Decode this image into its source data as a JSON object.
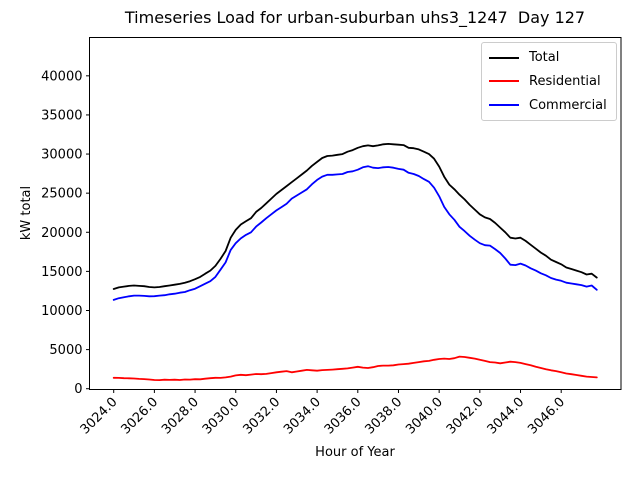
{
  "title": "Timeseries Load for urban-suburban uhs3_1247  Day 127",
  "chart_data": {
    "type": "line",
    "title": "Timeseries Load for urban-suburban uhs3_1247  Day 127",
    "xlabel": "Hour of Year",
    "ylabel": "kW total",
    "grid": false,
    "legend_position": "upper right",
    "xlim": [
      3022.81,
      3048.94
    ],
    "ylim": [
      -100,
      44900
    ],
    "x_ticks": [
      3024,
      3026,
      3028,
      3030,
      3032,
      3034,
      3036,
      3038,
      3040,
      3042,
      3044,
      3046
    ],
    "x_tick_labels": [
      "3024.0",
      "3026.0",
      "3028.0",
      "3030.0",
      "3032.0",
      "3034.0",
      "3036.0",
      "3038.0",
      "3040.0",
      "3042.0",
      "3044.0",
      "3046.0"
    ],
    "y_ticks": [
      0,
      5000,
      10000,
      15000,
      20000,
      25000,
      30000,
      35000,
      40000
    ],
    "y_tick_labels": [
      "0",
      "5000",
      "10000",
      "15000",
      "20000",
      "25000",
      "30000",
      "35000",
      "40000"
    ],
    "x": [
      3024.0,
      3024.25,
      3024.5,
      3024.75,
      3025.0,
      3025.25,
      3025.5,
      3025.75,
      3026.0,
      3026.25,
      3026.5,
      3026.75,
      3027.0,
      3027.25,
      3027.5,
      3027.75,
      3028.0,
      3028.25,
      3028.5,
      3028.75,
      3029.0,
      3029.25,
      3029.5,
      3029.75,
      3030.0,
      3030.25,
      3030.5,
      3030.75,
      3031.0,
      3031.25,
      3031.5,
      3031.75,
      3032.0,
      3032.25,
      3032.5,
      3032.75,
      3033.0,
      3033.25,
      3033.5,
      3033.75,
      3034.0,
      3034.25,
      3034.5,
      3034.75,
      3035.0,
      3035.25,
      3035.5,
      3035.75,
      3036.0,
      3036.25,
      3036.5,
      3036.75,
      3037.0,
      3037.25,
      3037.5,
      3037.75,
      3038.0,
      3038.25,
      3038.5,
      3038.75,
      3039.0,
      3039.25,
      3039.5,
      3039.75,
      3040.0,
      3040.25,
      3040.5,
      3040.75,
      3041.0,
      3041.25,
      3041.5,
      3041.75,
      3042.0,
      3042.25,
      3042.5,
      3042.75,
      3043.0,
      3043.25,
      3043.5,
      3043.75,
      3044.0,
      3044.25,
      3044.5,
      3044.75,
      3045.0,
      3045.25,
      3045.5,
      3045.75,
      3046.0,
      3046.25,
      3046.5,
      3046.75,
      3047.0,
      3047.25,
      3047.5,
      3047.75
    ],
    "series": [
      {
        "name": "Total",
        "color": "#000000",
        "values": [
          12750,
          12950,
          13050,
          13150,
          13200,
          13150,
          13100,
          13000,
          12950,
          13000,
          13100,
          13200,
          13300,
          13400,
          13550,
          13750,
          14000,
          14300,
          14700,
          15100,
          15700,
          16600,
          17600,
          19300,
          20300,
          21000,
          21400,
          21800,
          22600,
          23100,
          23700,
          24300,
          24900,
          25400,
          25900,
          26400,
          26900,
          27400,
          27900,
          28500,
          29000,
          29500,
          29750,
          29800,
          29900,
          30000,
          30300,
          30500,
          30800,
          31000,
          31100,
          31000,
          31100,
          31250,
          31300,
          31250,
          31200,
          31150,
          30800,
          30750,
          30600,
          30300,
          30000,
          29400,
          28400,
          27100,
          26100,
          25500,
          24800,
          24200,
          23500,
          22900,
          22300,
          21900,
          21700,
          21200,
          20600,
          20000,
          19300,
          19200,
          19300,
          18900,
          18400,
          17900,
          17400,
          17000,
          16500,
          16200,
          15900,
          15500,
          15300,
          15100,
          14900,
          14600,
          14700,
          14200
        ]
      },
      {
        "name": "Residential",
        "color": "#ff0000",
        "values": [
          1400,
          1380,
          1350,
          1330,
          1300,
          1250,
          1230,
          1180,
          1120,
          1100,
          1150,
          1130,
          1150,
          1120,
          1180,
          1160,
          1220,
          1200,
          1280,
          1350,
          1400,
          1380,
          1450,
          1550,
          1700,
          1780,
          1730,
          1800,
          1880,
          1850,
          1900,
          2000,
          2100,
          2180,
          2250,
          2100,
          2200,
          2300,
          2400,
          2350,
          2300,
          2380,
          2400,
          2450,
          2500,
          2550,
          2600,
          2700,
          2800,
          2700,
          2650,
          2750,
          2900,
          2950,
          2950,
          3000,
          3100,
          3150,
          3200,
          3300,
          3400,
          3500,
          3550,
          3700,
          3800,
          3850,
          3800,
          3900,
          4100,
          4050,
          3950,
          3850,
          3700,
          3550,
          3400,
          3350,
          3250,
          3350,
          3450,
          3400,
          3300,
          3150,
          3000,
          2800,
          2650,
          2500,
          2350,
          2250,
          2100,
          1950,
          1850,
          1750,
          1650,
          1550,
          1500,
          1450
        ]
      },
      {
        "name": "Commercial",
        "color": "#0000ff",
        "values": [
          11350,
          11570,
          11700,
          11820,
          11900,
          11900,
          11870,
          11820,
          11830,
          11900,
          11950,
          12070,
          12150,
          12280,
          12370,
          12590,
          12780,
          13100,
          13420,
          13750,
          14300,
          15220,
          16150,
          17750,
          18600,
          19220,
          19670,
          20000,
          20720,
          21250,
          21800,
          22300,
          22800,
          23220,
          23650,
          24300,
          24700,
          25100,
          25500,
          26150,
          26700,
          27120,
          27350,
          27350,
          27400,
          27450,
          27700,
          27800,
          28000,
          28300,
          28450,
          28250,
          28200,
          28300,
          28350,
          28250,
          28100,
          28000,
          27600,
          27450,
          27200,
          26800,
          26450,
          25700,
          24600,
          23250,
          22300,
          21600,
          20700,
          20150,
          19550,
          19050,
          18600,
          18350,
          18300,
          17850,
          17350,
          16650,
          15850,
          15800,
          16000,
          15750,
          15400,
          15100,
          14750,
          14500,
          14150,
          13950,
          13800,
          13550,
          13450,
          13350,
          13250,
          13050,
          13200,
          12650
        ]
      }
    ]
  }
}
